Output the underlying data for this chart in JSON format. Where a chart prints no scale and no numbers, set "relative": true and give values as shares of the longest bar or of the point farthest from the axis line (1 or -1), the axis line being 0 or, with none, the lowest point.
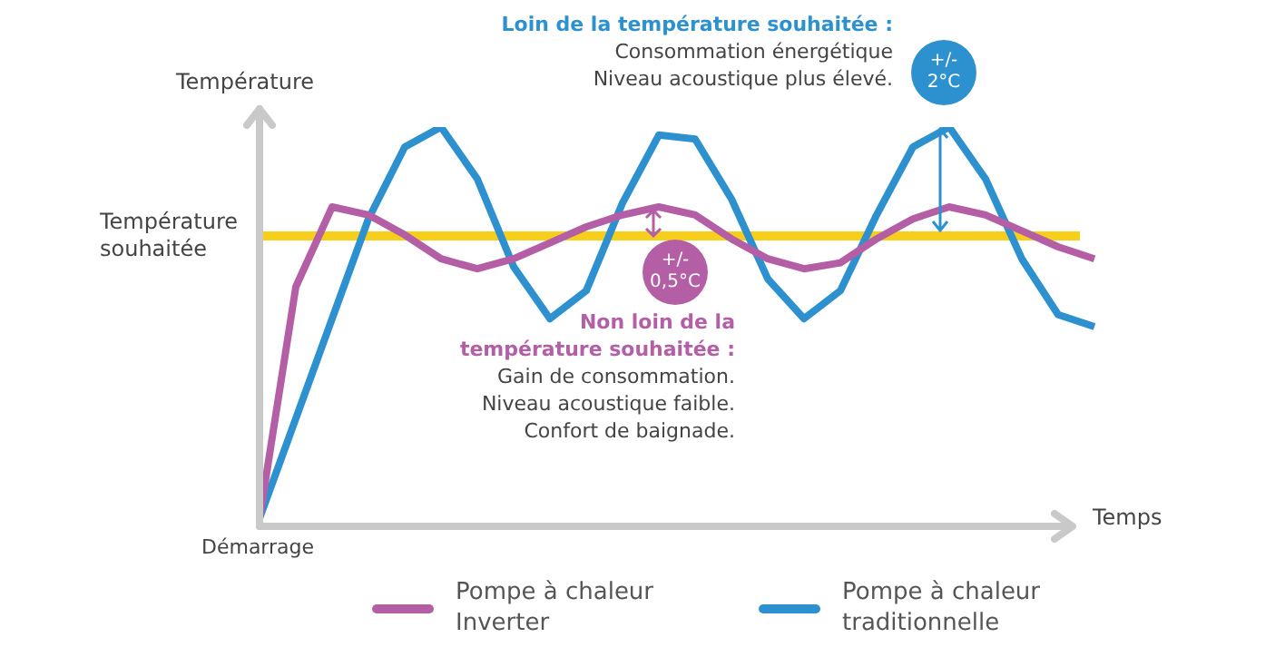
{
  "chart_data": {
    "type": "line",
    "relative": true,
    "ylabel": "Température",
    "xlabel": "Temps",
    "legend": "bottom",
    "marker": "none",
    "line_style": "solid",
    "categories": [
      null,
      null,
      null,
      null,
      null,
      null,
      null,
      null,
      null,
      null,
      null,
      null,
      null,
      null,
      null,
      null,
      null,
      null,
      null,
      null,
      null,
      null,
      null,
      null
    ],
    "series": [
      {
        "name": "Pompe à chaleur Inverter",
        "color": "#b45ea6",
        "values": [
          0.02,
          0.6,
          0.8,
          0.78,
          0.73,
          0.67,
          0.645,
          0.67,
          0.71,
          0.75,
          0.78,
          0.8,
          0.78,
          0.72,
          0.67,
          0.645,
          0.66,
          0.72,
          0.77,
          0.8,
          0.78,
          0.74,
          0.7,
          0.67
        ]
      },
      {
        "name": "Pompe à chaleur traditionnelle",
        "color": "#2d91cf",
        "values": [
          0.02,
          0.27,
          0.52,
          0.77,
          0.95,
          1.0,
          0.87,
          0.65,
          0.52,
          0.59,
          0.81,
          0.98,
          0.97,
          0.82,
          0.62,
          0.52,
          0.59,
          0.78,
          0.95,
          1.0,
          0.87,
          0.67,
          0.53,
          0.5
        ]
      }
    ],
    "ref_lines": [
      {
        "axis": "y",
        "value": 0.727,
        "label": "Température souhaitée",
        "color": "#f7cf1b"
      }
    ],
    "annotations": [
      "Démarrage",
      "Loin de la température souhaitée :\nConsommation énergétique\nNiveau acoustique plus élevé.",
      "+/-\n2°C",
      "Non loin de la\ntempérature souhaitée :\nGain de consommation.\nNiveau acoustique faible.\nConfort de baignade.",
      "+/-\n0,5°C"
    ]
  }
}
